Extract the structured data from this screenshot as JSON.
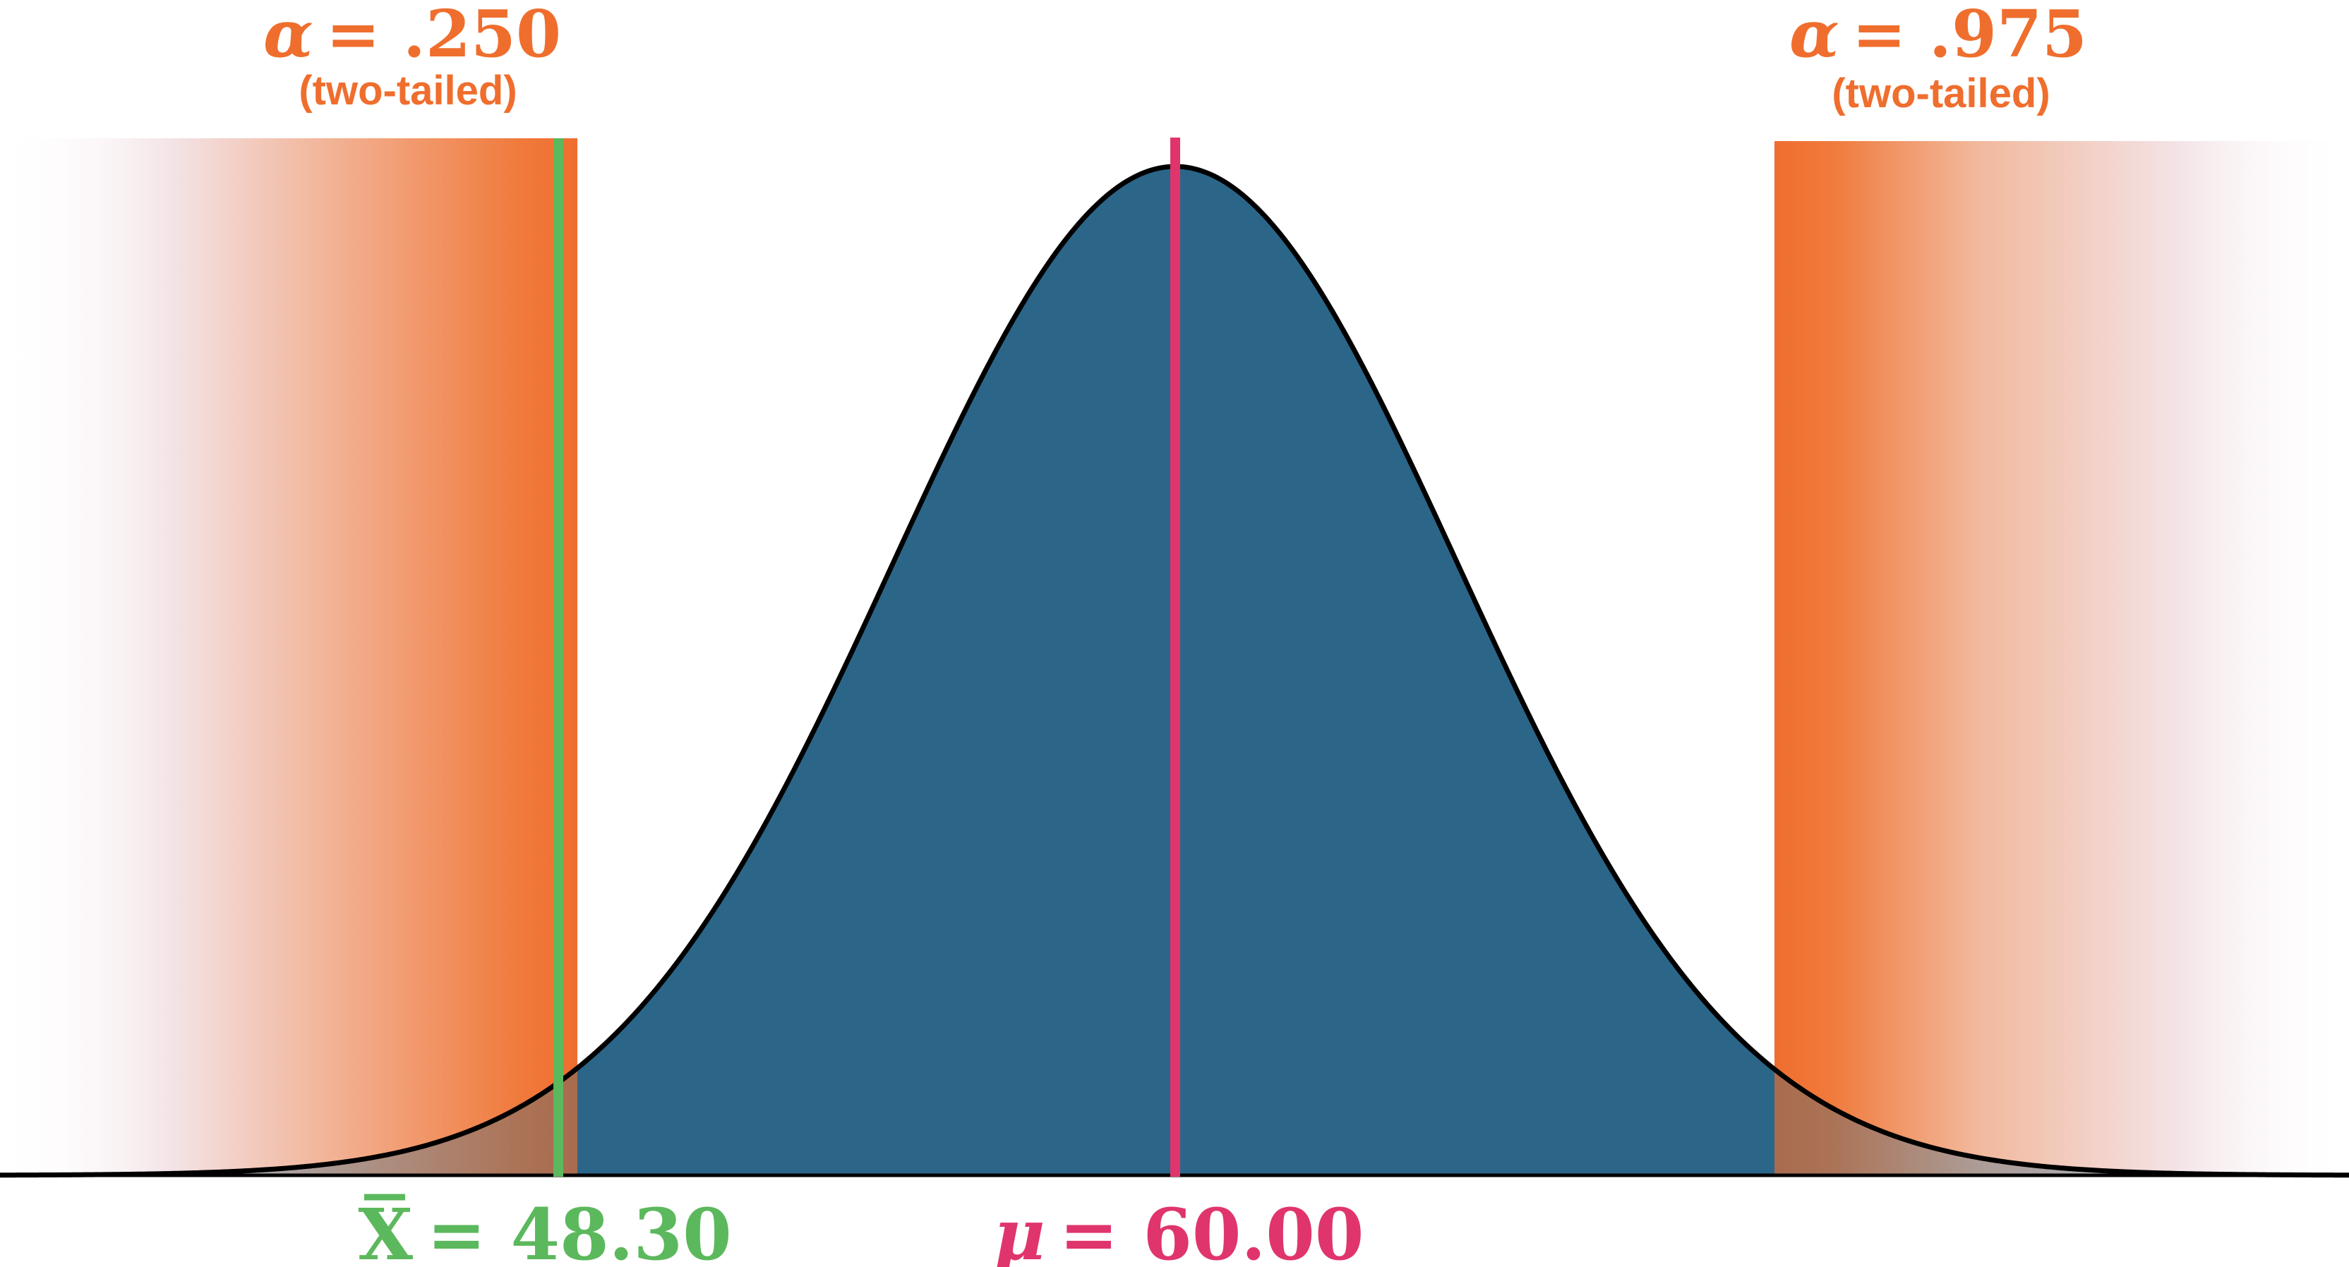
{
  "colors": {
    "curve_fill": "#2c6689",
    "curve_stroke": "#000000",
    "tail_orange": "#f07030",
    "mean_line": "#e0356c",
    "sample_line": "#5cb85c",
    "background": "#ffffff"
  },
  "labels": {
    "left_alpha_symbol": "α",
    "left_alpha_value": "= .250",
    "left_tail_note": "(two-tailed)",
    "right_alpha_symbol": "α",
    "right_alpha_value": "= .975",
    "right_tail_note": "(two-tailed)",
    "sample_symbol": "X",
    "sample_value": "= 48.30",
    "mu_symbol": "μ",
    "mu_value": "= 60.00"
  },
  "distribution": {
    "type": "normal",
    "mean": 60.0,
    "sample_mean": 48.3
  }
}
